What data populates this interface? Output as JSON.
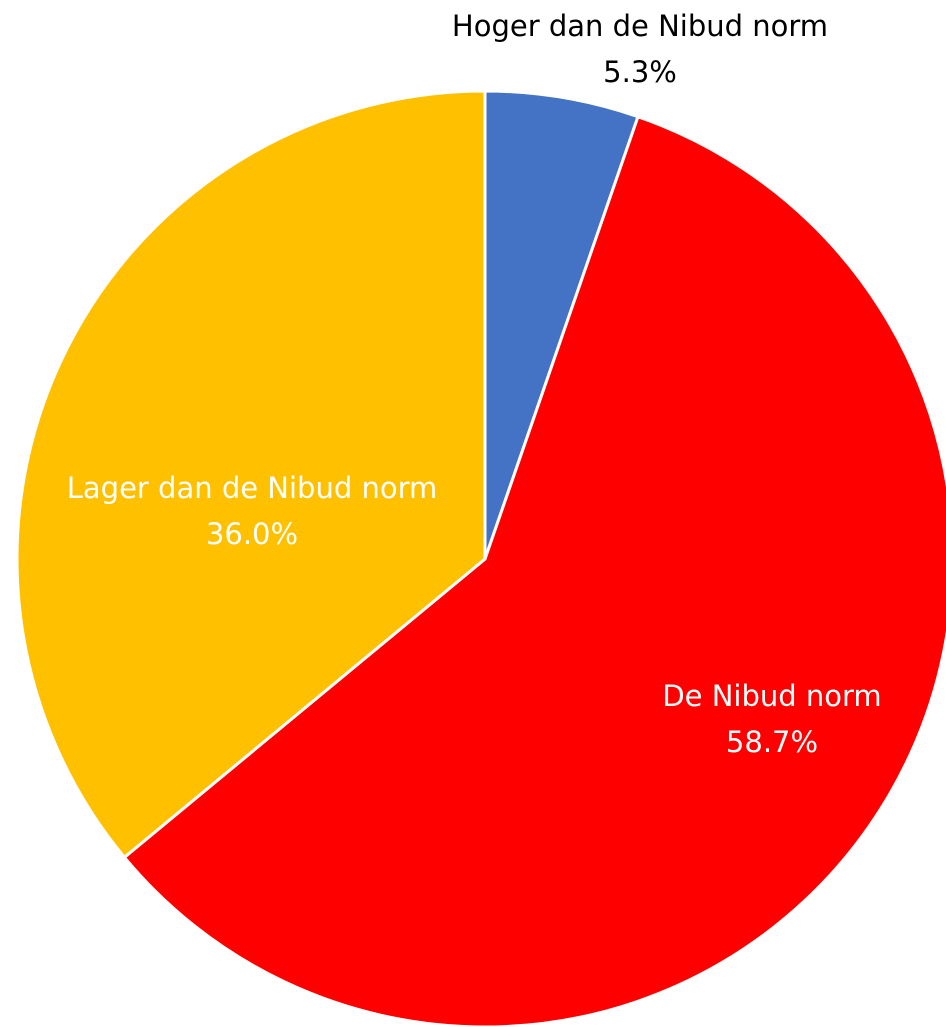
{
  "chart_data": {
    "type": "pie",
    "categories": [
      "Hoger dan de Nibud norm",
      "De Nibud norm",
      "Lager dan de Nibud norm"
    ],
    "values": [
      5.3,
      58.7,
      36.0
    ],
    "value_labels": [
      "5.3%",
      "58.7%",
      "36.0%"
    ],
    "colors": [
      "#4472c4",
      "#ff0000",
      "#ffc000"
    ]
  }
}
